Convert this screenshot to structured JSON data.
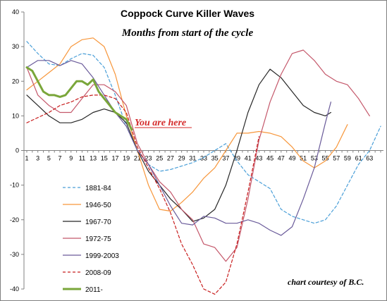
{
  "chart_data": {
    "type": "line",
    "title": "Coppock Curve Killer Waves",
    "subtitle": "Months from start of the cycle",
    "annotation": "You are here",
    "credit": "chart courtesy of B.C.",
    "xlabel": "",
    "ylabel": "",
    "xlim": [
      1,
      65
    ],
    "ylim": [
      -40,
      40
    ],
    "yticks": [
      -40,
      -30,
      -20,
      -10,
      0,
      10,
      20,
      30,
      40
    ],
    "xticks": [
      1,
      3,
      5,
      7,
      9,
      11,
      13,
      15,
      17,
      19,
      21,
      23,
      25,
      27,
      29,
      31,
      33,
      35,
      37,
      39,
      41,
      43,
      45,
      47,
      49,
      51,
      53,
      55,
      57,
      59,
      61,
      63
    ],
    "legend_position": "bottom-left",
    "grid": false,
    "series": [
      {
        "name": "1881-84",
        "color": "#4a9fd8",
        "dash": "dashed",
        "width": 1.2,
        "x": [
          1,
          3,
          5,
          7,
          9,
          11,
          13,
          15,
          17,
          19,
          21,
          23,
          25,
          27,
          29,
          31,
          33,
          35,
          37,
          39,
          41,
          43,
          45,
          47,
          49,
          51,
          53,
          55,
          57,
          59,
          61,
          63,
          65
        ],
        "y": [
          31.5,
          28,
          25,
          24.5,
          26.5,
          28,
          27.5,
          24,
          16,
          7,
          0,
          -4,
          -6,
          -5.5,
          -4.5,
          -3.5,
          -2,
          0,
          2,
          -3,
          -7,
          -9,
          -11,
          -17,
          -19,
          -20,
          -21,
          -20,
          -16,
          -10,
          -4,
          0,
          7
        ]
      },
      {
        "name": "1946-50",
        "color": "#f7963a",
        "dash": "solid",
        "width": 1.2,
        "x": [
          1,
          3,
          5,
          7,
          9,
          11,
          13,
          15,
          17,
          19,
          21,
          23,
          25,
          27,
          29,
          31,
          33,
          35,
          37,
          39,
          41,
          43,
          45,
          47,
          49,
          51,
          53,
          55,
          57,
          59
        ],
        "y": [
          17.5,
          20,
          22.5,
          25,
          30,
          32,
          32.5,
          30,
          22,
          10,
          0,
          -10,
          -17,
          -17.5,
          -15,
          -12,
          -8,
          -5,
          0,
          5,
          5,
          5.5,
          5,
          4,
          1,
          -3,
          -5,
          -3,
          1,
          7.5
        ]
      },
      {
        "name": "1967-70",
        "color": "#262626",
        "dash": "solid",
        "width": 1.2,
        "x": [
          1,
          3,
          5,
          7,
          9,
          11,
          13,
          15,
          17,
          19,
          21,
          23,
          25,
          27,
          29,
          31,
          33,
          35,
          37,
          39,
          41,
          43,
          45,
          47,
          49,
          51,
          53,
          55,
          56
        ],
        "y": [
          16,
          13,
          10,
          8,
          8,
          9,
          11,
          12,
          11,
          8,
          0,
          -6,
          -10,
          -14,
          -17,
          -20.5,
          -19.5,
          -17,
          -10,
          0,
          11,
          19,
          23.5,
          21,
          17,
          13,
          11,
          10,
          11
        ]
      },
      {
        "name": "1972-75",
        "color": "#c4576a",
        "dash": "solid",
        "width": 1.2,
        "x": [
          1,
          3,
          5,
          7,
          9,
          11,
          13,
          15,
          17,
          19,
          21,
          23,
          25,
          27,
          29,
          31,
          33,
          35,
          37,
          39,
          41,
          43,
          45,
          47,
          49,
          51,
          53,
          55,
          57,
          59,
          61,
          63
        ],
        "y": [
          24,
          16,
          13,
          11,
          11,
          15,
          19,
          19,
          17,
          13,
          2,
          -4,
          -9,
          -12,
          -17,
          -20,
          -27,
          -28,
          -32,
          -28,
          -14,
          3,
          14,
          22,
          28,
          29,
          26,
          22,
          20,
          19,
          15,
          10
        ]
      },
      {
        "name": "1999-2003",
        "color": "#6a5b9a",
        "dash": "solid",
        "width": 1.2,
        "x": [
          1,
          3,
          5,
          7,
          9,
          11,
          13,
          15,
          17,
          19,
          21,
          23,
          25,
          27,
          29,
          31,
          33,
          35,
          37,
          39,
          41,
          43,
          45,
          47,
          49,
          51,
          53,
          55,
          56
        ],
        "y": [
          24,
          26,
          26,
          24.5,
          26,
          25,
          21,
          16,
          11,
          7,
          0,
          -4,
          -10,
          -16,
          -21,
          -21.5,
          -19,
          -19.5,
          -21,
          -21,
          -20,
          -21,
          -23,
          -24.5,
          -22,
          -14,
          -5,
          8,
          14
        ]
      },
      {
        "name": "2008-09",
        "color": "#c81e1e",
        "dash": "dashed",
        "width": 1.2,
        "x": [
          1,
          3,
          5,
          7,
          9,
          11,
          13,
          15,
          17,
          19,
          21,
          23,
          25,
          27,
          29,
          31,
          33,
          35,
          37,
          39,
          41,
          43
        ],
        "y": [
          8,
          9.5,
          11,
          13,
          14,
          15.5,
          16,
          16,
          15,
          11,
          1,
          -5,
          -11,
          -18,
          -27,
          -33,
          -40,
          -41.5,
          -38,
          -27,
          -12,
          4
        ]
      },
      {
        "name": "2011-",
        "color": "#7aa63a",
        "dash": "solid",
        "width": 3,
        "x": [
          1,
          2,
          3,
          4,
          5,
          6,
          7,
          8,
          9,
          10,
          11,
          12,
          13,
          14,
          15,
          16,
          17,
          18,
          19,
          20
        ],
        "y": [
          24,
          23,
          20,
          17,
          16,
          16,
          15.5,
          16,
          18,
          20,
          20,
          19,
          20.5,
          17,
          15,
          13,
          11,
          10,
          9,
          6
        ]
      }
    ]
  }
}
